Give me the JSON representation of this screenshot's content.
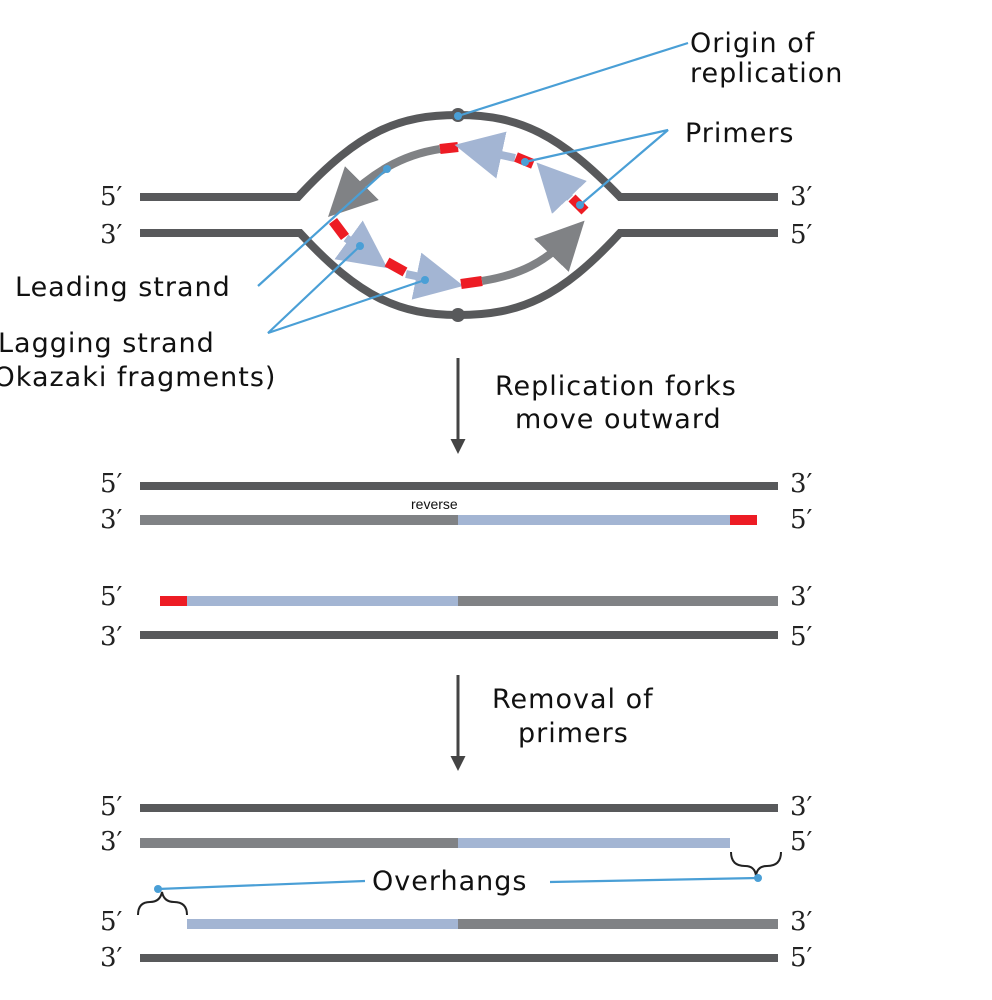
{
  "ends": {
    "five": "5′",
    "three": "3′"
  },
  "labels": {
    "origin_line1": "Origin of",
    "origin_line2": "replication",
    "primers": "Primers",
    "leading": "Leading strand",
    "lagging_line1": "Lagging strand",
    "lagging_line2": "(Okazaki fragments)",
    "step1_line1": "Replication forks",
    "step1_line2": "move outward",
    "reverse": "reverse",
    "step2_line1": "Removal of",
    "step2_line2": "primers",
    "overhangs": "Overhangs"
  },
  "colors": {
    "parental": "#58595b",
    "leading": "#808285",
    "okazaki": "#a3b5d3",
    "primer": "#ed1c24",
    "callout": "#4a9fd6"
  }
}
